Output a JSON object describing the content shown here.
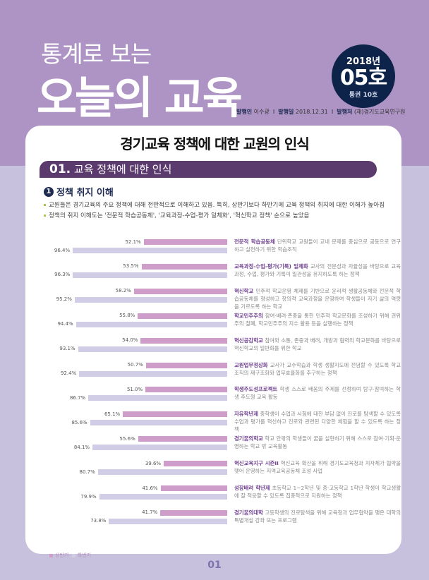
{
  "header": {
    "subtitle": "통계로 보는",
    "title": "오늘의 교육",
    "badge": {
      "year": "2018년",
      "issue": "05호",
      "total": "통권 10호"
    },
    "publisher_label": "발행인",
    "publisher": "이수광",
    "date_label": "발행일",
    "date": "2018.12.31",
    "org_label": "발행처",
    "org": "(재)경기도교육연구원",
    "sep": "I"
  },
  "main": {
    "title": "경기교육 정책에 대한 교원의 인식",
    "section_num": "01.",
    "section_title": "교육 정책에 대한 인식",
    "sub_num": "1",
    "sub_title": "정책 취지 이해",
    "bullets": [
      "교원들은 경기교육의 주요 정책에 대해 전반적으로 이해하고 있음. 특히, 상반기보다 하반기에 교육 정책의 취지에 대한 이해가 높아짐",
      "정책의 취지 이해도는 '전문적 학습공동체', '교육과정-수업-평가 일체화', '혁신학교 정책' 순으로 높았음"
    ]
  },
  "chart_data": {
    "type": "bar",
    "orientation": "horizontal",
    "colors": {
      "first_half": "#cf9dca",
      "second_half": "#d1cde6"
    },
    "series": [
      {
        "name": "상반기",
        "values": [
          52.1,
          53.5,
          58.2,
          55.8,
          54.0,
          50.7,
          51.0,
          65.1,
          55.6,
          39.6,
          41.6,
          41.7
        ],
        "labels": [
          "52.1%",
          "53.5%",
          "58.2%",
          "55.8%",
          "54.0%",
          "50.7%",
          "51.0%",
          "65.1%",
          "55.6%",
          "39.6%",
          "41.6%",
          "41.7%"
        ]
      },
      {
        "name": "하반기",
        "values": [
          96.4,
          96.3,
          95.2,
          94.4,
          93.1,
          92.4,
          86.7,
          85.6,
          84.1,
          80.7,
          79.9,
          73.8
        ],
        "labels": [
          "96.4%",
          "96.3%",
          "95.2%",
          "94.4%",
          "93.1%",
          "92.4%",
          "86.7%",
          "85.6%",
          "84.1%",
          "80.7%",
          "79.9%",
          "73.8%"
        ]
      }
    ],
    "categories": [
      {
        "name": "전문적 학습공동체",
        "desc": "단위학교 교원들이 교내 문제를 중심으로 공동으로 연구하고 실천하기 위한 학습조직"
      },
      {
        "name": "교육과정-수업-평가(기록) 일체화",
        "desc": "교사의 전문성과 자율성을 바탕으로 교육과정, 수업, 평가와 기록이 일관성을 유지하도록 하는 정책"
      },
      {
        "name": "혁신학교",
        "desc": "민주적 학교운영 체제를 기반으로 윤리적 생활공동체와 전문적 학습공동체를 형성하고 창의적 교육과정을 운영하여 학생들이 자기 삶의 역량을 기르도록 하는 학교"
      },
      {
        "name": "학교민주주의",
        "desc": "참여·배려·존중을 통한 민주적 학교문화를 조성하기 위해 권위주의 철폐, 학교민주주의 지수 활용 등을 실행하는 정책"
      },
      {
        "name": "혁신공감학교",
        "desc": "참여와 소통, 존중과 배려, 개방과 협력의 학교문화를 바탕으로 혁신학교의 일반화를 위한 학교"
      },
      {
        "name": "교원업무정상화",
        "desc": "교사가 교수학습과 학생 생활지도에 전념할 수 있도록 학교조직의 재구조화와 업무효율화를 추구하는 정책"
      },
      {
        "name": "학생주도성프로젝트",
        "desc": "학생 스스로 배움의 주제를 선정하여 탐구·참여하는 학생 주도형 교육 활동"
      },
      {
        "name": "자유학년제",
        "desc": "중학생이 수업과 시험에 대한 부담 없이 진로를 탐색할 수 있도록 수업과 평가를 혁신하고 진로와 관련된 다양한 체험을 할 수 있도록 하는 정책"
      },
      {
        "name": "경기꿈의학교",
        "desc": "학교 안팎의 학생들이 꿈을 실현하기 위해 스스로 참여·기획·운영하는 학교 밖 교육활동"
      },
      {
        "name": "혁신교육지구 시즌II",
        "desc": "혁신교육 확산을 위해 경기도교육청과 지자체가 협약을 맺어 운영하는 지역교육공동체 조성 사업"
      },
      {
        "name": "성장배려 학년제",
        "desc": "초등학교 1~2학년 및 중·고등학교 1학년 학생이 학교생활에 잘 적응할 수 있도록 집중적으로 지원하는 정책"
      },
      {
        "name": "경기꿈의대학",
        "desc": "고등학생의 진로탐색을 위해 교육청과 업무협약을 맺은 대학의 특별개설 강좌 또는 프로그램"
      }
    ],
    "xlim": [
      0,
      100
    ],
    "legend": "bottom-left"
  },
  "footer": {
    "legend": [
      "상반기",
      "하반기"
    ],
    "page": "01"
  }
}
